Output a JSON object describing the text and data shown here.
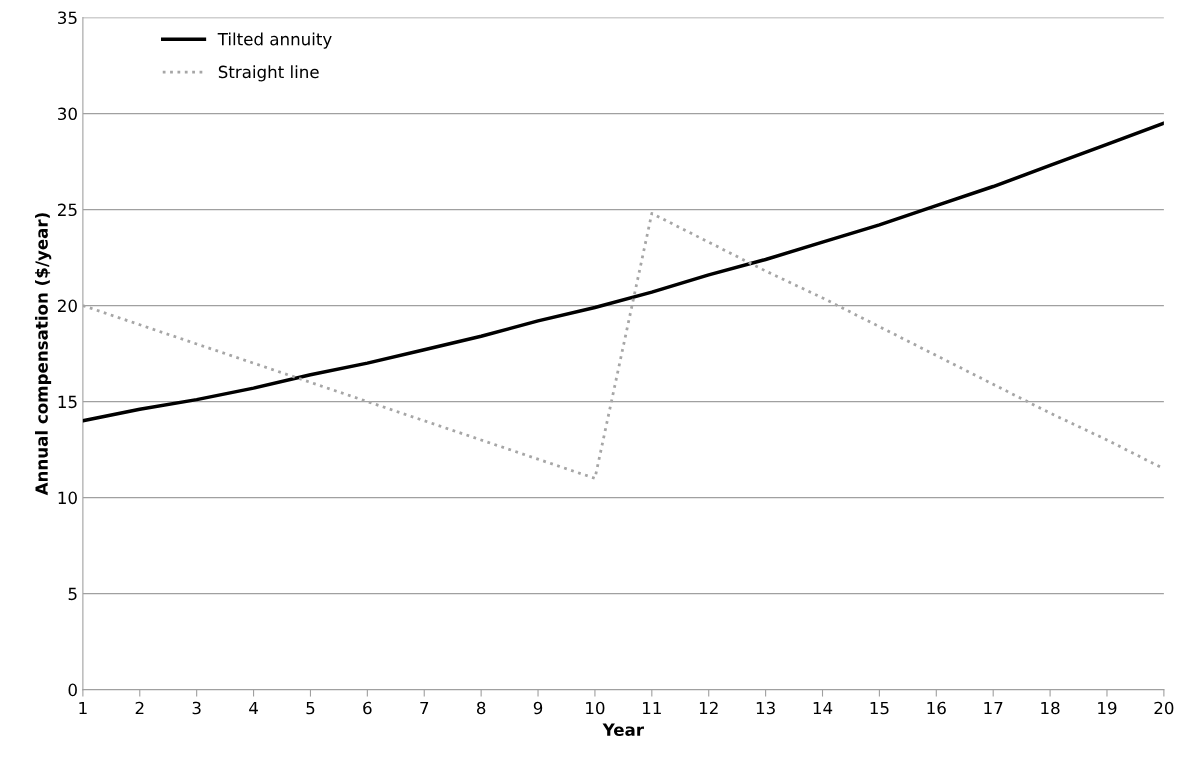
{
  "chart_data": {
    "type": "line",
    "xlabel": "Year",
    "ylabel": "Annual compensation ($/year)",
    "categories": [
      "1",
      "2",
      "3",
      "4",
      "5",
      "6",
      "7",
      "8",
      "9",
      "10",
      "11",
      "12",
      "13",
      "14",
      "15",
      "16",
      "17",
      "18",
      "19",
      "20"
    ],
    "series": [
      {
        "name": "Tilted annuity",
        "color": "#000000",
        "line_style": "solid",
        "values": [
          14.0,
          14.6,
          15.1,
          15.7,
          16.4,
          17.0,
          17.7,
          18.4,
          19.2,
          19.9,
          20.7,
          21.6,
          22.4,
          23.3,
          24.2,
          25.2,
          26.2,
          27.3,
          28.4,
          29.5
        ]
      },
      {
        "name": "Straight line",
        "color": "#a6a6a6",
        "line_style": "dotted",
        "values": [
          20.0,
          19.0,
          18.0,
          17.0,
          16.0,
          15.0,
          14.0,
          13.0,
          12.0,
          11.0,
          24.8,
          23.3,
          21.8,
          20.4,
          18.9,
          17.4,
          15.9,
          14.4,
          13.0,
          11.5
        ]
      }
    ],
    "ylim": [
      0,
      35
    ],
    "yticks": [
      0,
      5,
      10,
      15,
      20,
      25,
      30,
      35
    ],
    "grid": "y",
    "legend": "top left",
    "marker": "none"
  }
}
